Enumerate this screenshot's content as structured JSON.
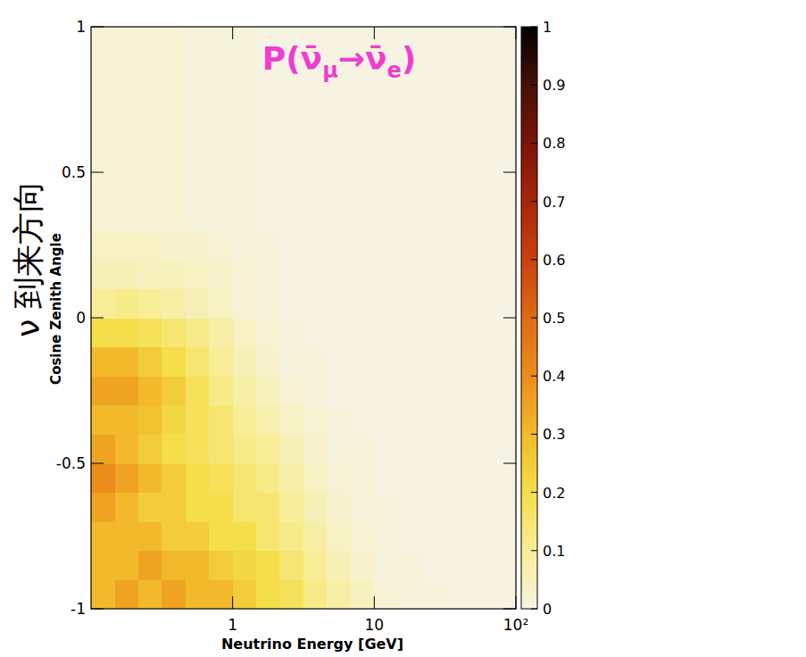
{
  "chart_data": {
    "type": "heatmap",
    "title": "P(ν̄μ→ν̄e)",
    "annotation": "ν 到来方向",
    "x_label": "Neutrino Energy [GeV]",
    "y_label": "Cosine Zenith Angle",
    "log": "x",
    "xlim": [
      0.1,
      100
    ],
    "xticks": [
      1,
      10,
      {
        "value": 100,
        "label": "10²"
      }
    ],
    "ylim": [
      -1,
      1
    ],
    "yticks": [
      -1,
      -0.5,
      0,
      0.5,
      1
    ],
    "zlim": [
      0,
      1
    ],
    "zticks": [
      0,
      0.1,
      0.2,
      0.3,
      0.4,
      0.5,
      0.6,
      0.7,
      0.8,
      0.9,
      1
    ],
    "x_bins": [
      0.1,
      0.147,
      0.215,
      0.316,
      0.464,
      0.681,
      1,
      1.47,
      2.15,
      3.16,
      4.64,
      6.81,
      10,
      14.7,
      21.5,
      31.6,
      46.4,
      68.1,
      100
    ],
    "y_bins": [
      -1,
      -0.9,
      -0.8,
      -0.7,
      -0.6,
      -0.5,
      -0.4,
      -0.3,
      -0.2,
      -0.1,
      0,
      0.1,
      0.2,
      0.3,
      0.4,
      0.5,
      0.6,
      0.7,
      0.8,
      0.9,
      1
    ],
    "cells": [
      [
        0.3,
        0.35,
        0.3,
        0.35,
        0.3,
        0.3,
        0.25,
        0.2,
        0.18,
        0.12,
        0.08,
        0.05,
        0.02,
        0.01,
        0.01,
        0,
        0,
        0
      ],
      [
        0.3,
        0.3,
        0.35,
        0.3,
        0.3,
        0.25,
        0.22,
        0.2,
        0.15,
        0.1,
        0.06,
        0.03,
        0.01,
        0.01,
        0,
        0,
        0,
        0
      ],
      [
        0.3,
        0.3,
        0.3,
        0.25,
        0.25,
        0.2,
        0.2,
        0.15,
        0.12,
        0.08,
        0.04,
        0.02,
        0.01,
        0,
        0,
        0,
        0,
        0
      ],
      [
        0.35,
        0.3,
        0.25,
        0.25,
        0.2,
        0.2,
        0.15,
        0.15,
        0.1,
        0.06,
        0.03,
        0.01,
        0.01,
        0,
        0,
        0,
        0,
        0
      ],
      [
        0.4,
        0.35,
        0.3,
        0.25,
        0.2,
        0.18,
        0.15,
        0.12,
        0.08,
        0.04,
        0.02,
        0.01,
        0,
        0,
        0,
        0,
        0,
        0
      ],
      [
        0.35,
        0.3,
        0.25,
        0.2,
        0.18,
        0.15,
        0.12,
        0.1,
        0.06,
        0.03,
        0.01,
        0.01,
        0,
        0,
        0,
        0,
        0,
        0
      ],
      [
        0.3,
        0.3,
        0.28,
        0.22,
        0.18,
        0.15,
        0.1,
        0.07,
        0.04,
        0.02,
        0.01,
        0,
        0,
        0,
        0,
        0,
        0,
        0
      ],
      [
        0.35,
        0.35,
        0.3,
        0.25,
        0.18,
        0.12,
        0.08,
        0.05,
        0.02,
        0.01,
        0,
        0,
        0,
        0,
        0,
        0,
        0,
        0
      ],
      [
        0.3,
        0.3,
        0.25,
        0.2,
        0.15,
        0.1,
        0.06,
        0.03,
        0.01,
        0.01,
        0,
        0,
        0,
        0,
        0,
        0,
        0,
        0
      ],
      [
        0.2,
        0.2,
        0.18,
        0.15,
        0.12,
        0.08,
        0.04,
        0.02,
        0.01,
        0,
        0,
        0,
        0,
        0,
        0,
        0,
        0,
        0
      ],
      [
        0.1,
        0.12,
        0.1,
        0.08,
        0.06,
        0.04,
        0.02,
        0.01,
        0,
        0,
        0,
        0,
        0,
        0,
        0,
        0,
        0,
        0
      ],
      [
        0.06,
        0.06,
        0.05,
        0.05,
        0.04,
        0.03,
        0.02,
        0.01,
        0,
        0,
        0,
        0,
        0,
        0,
        0,
        0,
        0,
        0
      ],
      [
        0.04,
        0.04,
        0.04,
        0.03,
        0.03,
        0.02,
        0.01,
        0.01,
        0,
        0,
        0,
        0,
        0,
        0,
        0,
        0,
        0,
        0
      ],
      [
        0.02,
        0.02,
        0.02,
        0.02,
        0.01,
        0.01,
        0.01,
        0,
        0,
        0,
        0,
        0,
        0,
        0,
        0,
        0,
        0,
        0
      ],
      [
        0.02,
        0.02,
        0.02,
        0.02,
        0.01,
        0.01,
        0.01,
        0,
        0,
        0,
        0,
        0,
        0,
        0,
        0,
        0,
        0,
        0
      ],
      [
        0.02,
        0.02,
        0.02,
        0.02,
        0.01,
        0.01,
        0.01,
        0,
        0,
        0,
        0,
        0,
        0,
        0,
        0,
        0,
        0,
        0
      ],
      [
        0.02,
        0.02,
        0.02,
        0.02,
        0.01,
        0.01,
        0.01,
        0,
        0,
        0,
        0,
        0,
        0,
        0,
        0,
        0,
        0,
        0
      ],
      [
        0.02,
        0.02,
        0.02,
        0.02,
        0.01,
        0.01,
        0.01,
        0,
        0,
        0,
        0,
        0,
        0,
        0,
        0,
        0,
        0,
        0
      ],
      [
        0.02,
        0.02,
        0.02,
        0.02,
        0.01,
        0.01,
        0.01,
        0,
        0,
        0,
        0,
        0,
        0,
        0,
        0,
        0,
        0,
        0
      ],
      [
        0.02,
        0.02,
        0.02,
        0.02,
        0.01,
        0.01,
        0.01,
        0,
        0,
        0,
        0,
        0,
        0,
        0,
        0,
        0,
        0,
        0
      ]
    ]
  }
}
